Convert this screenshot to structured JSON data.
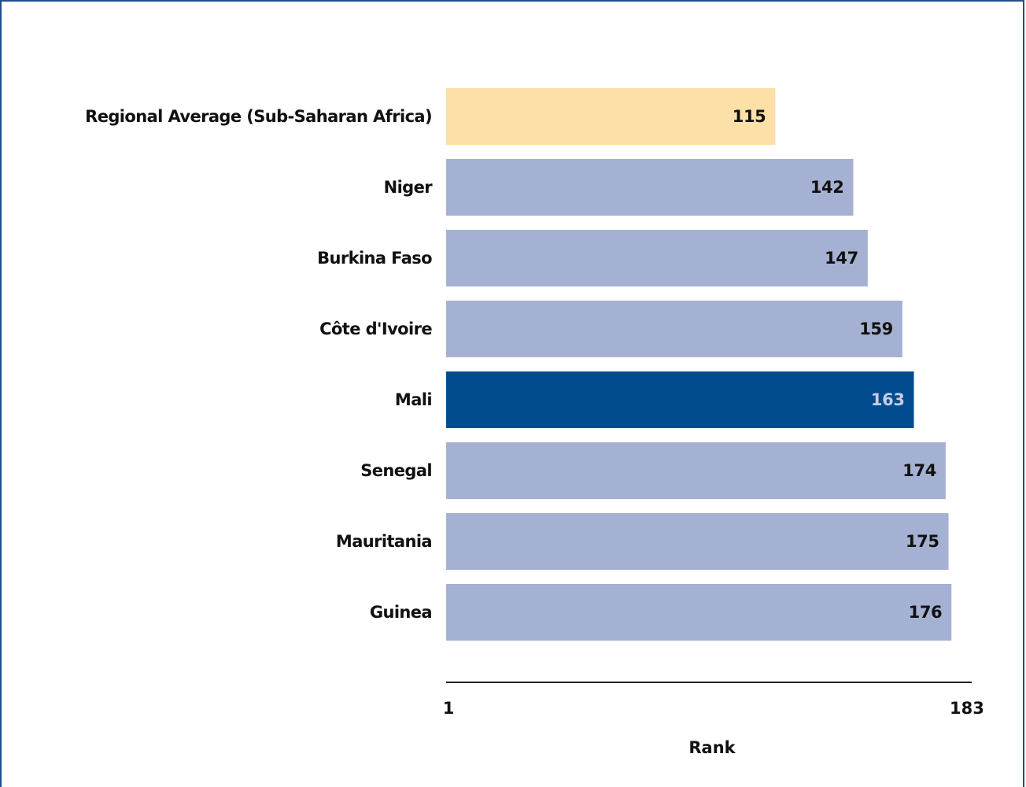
{
  "chart_data": {
    "type": "bar",
    "orientation": "horizontal",
    "categories": [
      "Regional Average (Sub-Saharan Africa)",
      "Niger",
      "Burkina Faso",
      "Côte d'Ivoire",
      "Mali",
      "Senegal",
      "Mauritania",
      "Guinea"
    ],
    "values": [
      115,
      142,
      147,
      159,
      163,
      174,
      175,
      176
    ],
    "value_labels": [
      "115",
      "142",
      "147",
      "159",
      "163",
      "174",
      "175",
      "176"
    ],
    "xlim": [
      1,
      183
    ],
    "x_ticks": [
      "1",
      "183"
    ],
    "xlabel": "Rank",
    "ylabel": "",
    "title": "",
    "grid": false,
    "colors": {
      "regional": "#fde0a8",
      "default": "#a5b1d3",
      "highlight": "#004c8f",
      "highlight_label": "#c5cde3",
      "label": "#111111",
      "axis": "#222222"
    },
    "bar_styles": [
      "regional",
      "default",
      "default",
      "default",
      "highlight",
      "default",
      "default",
      "default"
    ]
  }
}
